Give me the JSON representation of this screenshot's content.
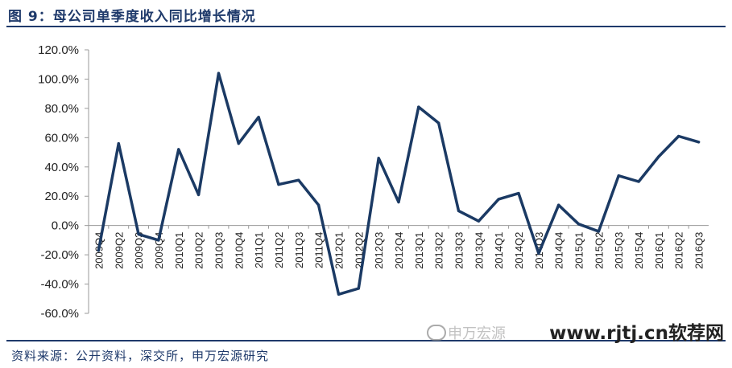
{
  "header": {
    "title": "图 9：母公司单季度收入同比增长情况"
  },
  "footer": {
    "source": "资料来源：公开资料，深交所，申万宏源研究"
  },
  "watermark": {
    "text": "www.rjtj.cn软荐网",
    "faded_text": "申万宏源"
  },
  "colors": {
    "line": "#1b3a64",
    "rule": "#1f3a6b"
  },
  "chart_data": {
    "type": "line",
    "title": "",
    "xlabel": "",
    "ylabel": "",
    "ylim": [
      -60,
      120
    ],
    "y_ticks": [
      "120.0%",
      "100.0%",
      "80.0%",
      "60.0%",
      "40.0%",
      "20.0%",
      "0.0%",
      "-20.0%",
      "-40.0%",
      "-60.0%"
    ],
    "y_tick_values": [
      120,
      100,
      80,
      60,
      40,
      20,
      0,
      -20,
      -40,
      -60
    ],
    "grid": false,
    "categories": [
      "2009Q4",
      "2009Q2",
      "2009Q3",
      "2009Q4",
      "2010Q1",
      "2010Q2",
      "2010Q3",
      "2010Q4",
      "2011Q1",
      "2011Q2",
      "2011Q3",
      "2011Q4",
      "2012Q1",
      "2012Q2",
      "2012Q3",
      "2012Q4",
      "2013Q1",
      "2013Q2",
      "2013Q3",
      "2013Q4",
      "2014Q1",
      "2014Q2",
      "2014Q3",
      "2014Q4",
      "2015Q1",
      "2015Q2",
      "2015Q3",
      "2015Q4",
      "2016Q1",
      "2016Q2",
      "2016Q3"
    ],
    "series": [
      {
        "values": [
          -17,
          56,
          -6,
          -10,
          52,
          21,
          104,
          56,
          74,
          28,
          31,
          14,
          -47,
          -43,
          46,
          16,
          81,
          70,
          10,
          3,
          18,
          22,
          -19,
          14,
          1,
          -4,
          34,
          30,
          47,
          61,
          57
        ]
      }
    ]
  }
}
